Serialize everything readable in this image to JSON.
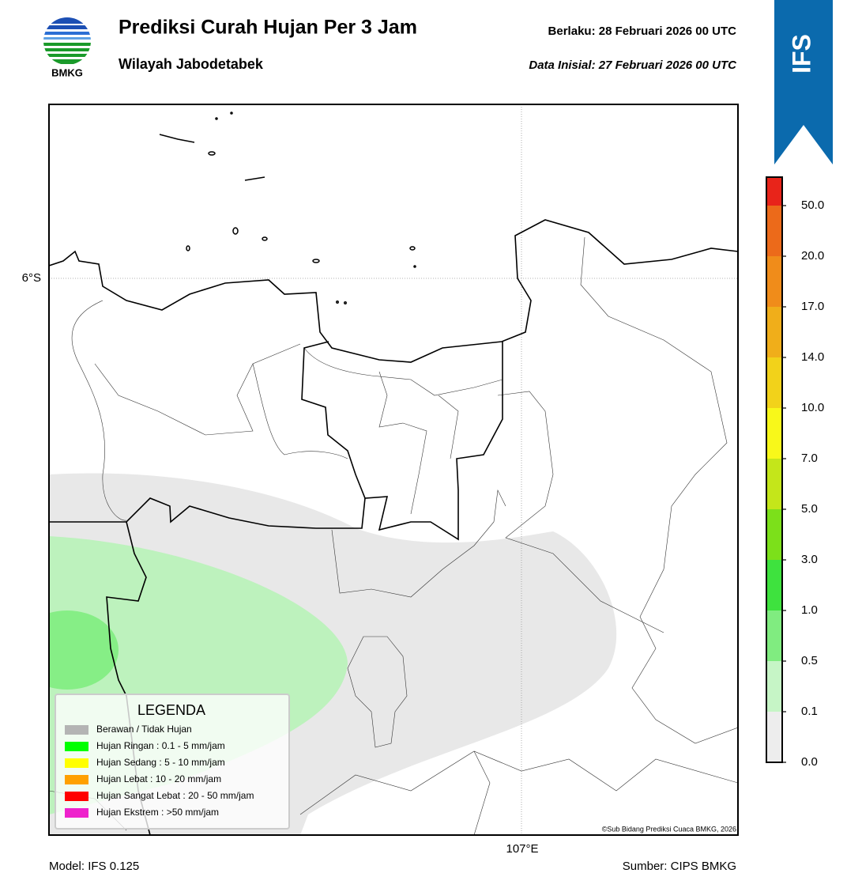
{
  "header": {
    "title": "Prediksi Curah Hujan Per 3 Jam",
    "subtitle": "Wilayah Jabodetabek",
    "valid": "Berlaku:  28 Februari 2026 00 UTC",
    "init": "Data Inisial:  27 Februari 2026 00 UTC",
    "logo": "BMKG",
    "badge": "IFS"
  },
  "map": {
    "lat_label": "6°S",
    "lon_label": "107°E",
    "credit": "©Sub Bidang Prediksi Cuaca BMKG, 2026"
  },
  "legend": {
    "title": "LEGENDA",
    "items": [
      {
        "label": "Berawan / Tidak Hujan",
        "color": "#b4b4b4"
      },
      {
        "label": "Hujan Ringan : 0.1 - 5 mm/jam",
        "color": "#00ff00"
      },
      {
        "label": "Hujan Sedang : 5 - 10 mm/jam",
        "color": "#ffff00"
      },
      {
        "label": "Hujan Lebat : 10 - 20 mm/jam",
        "color": "#ffa000"
      },
      {
        "label": "Hujan Sangat Lebat : 20 - 50 mm/jam",
        "color": "#ff0000"
      },
      {
        "label": "Hujan Ekstrem : >50 mm/jam",
        "color": "#ee22cc"
      }
    ]
  },
  "colorbar": {
    "ticks": [
      "0.0",
      "0.1",
      "0.5",
      "1.0",
      "3.0",
      "5.0",
      "7.0",
      "10.0",
      "14.0",
      "17.0",
      "20.0",
      "50.0"
    ],
    "colors": [
      "#ededed",
      "#c6f5c6",
      "#80ec80",
      "#3ee23e",
      "#7ce01a",
      "#c4e61a",
      "#f8f81a",
      "#f2d21a",
      "#f0ae1a",
      "#f08c1a",
      "#ec6a1a",
      "#e8241a",
      "#e820c0"
    ]
  },
  "footer": {
    "model": "Model: IFS 0.125",
    "source": "Sumber: CIPS BMKG"
  }
}
